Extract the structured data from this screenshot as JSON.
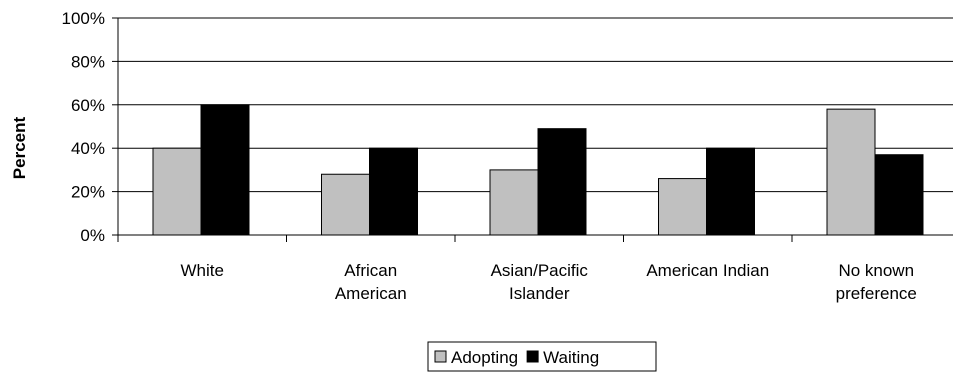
{
  "chart_data": {
    "type": "bar",
    "title": "",
    "xlabel": "",
    "ylabel": "Percent",
    "ylim": [
      0,
      100
    ],
    "yticks": [
      0,
      20,
      40,
      60,
      80,
      100
    ],
    "ytick_suffix": "%",
    "categories": [
      [
        "White"
      ],
      [
        "African",
        "American"
      ],
      [
        "Asian/Pacific",
        "Islander"
      ],
      [
        "American Indian"
      ],
      [
        "No known",
        "preference"
      ]
    ],
    "series": [
      {
        "name": "Adopting",
        "color": "#c0c0c0",
        "values": [
          40,
          28,
          30,
          26,
          58
        ]
      },
      {
        "name": "Waiting",
        "color": "#000000",
        "values": [
          60,
          40,
          49,
          40,
          37
        ]
      }
    ],
    "grid": true,
    "legend_position": "bottom-center"
  }
}
